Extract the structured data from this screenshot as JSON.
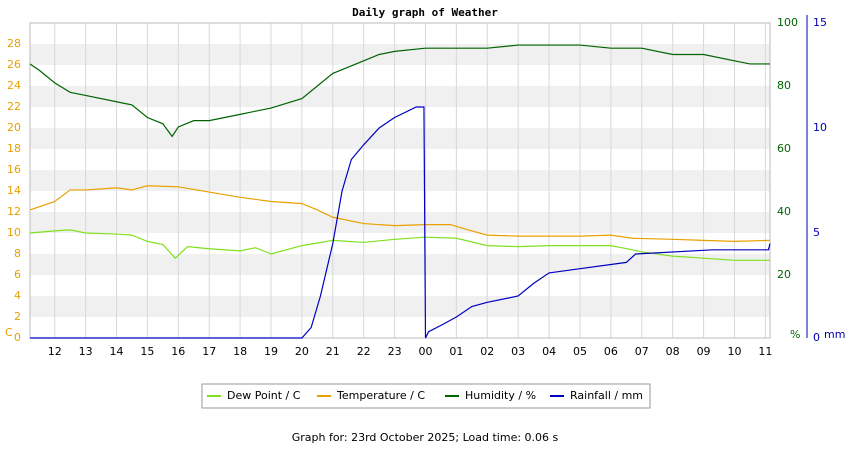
{
  "chart_data": {
    "type": "line",
    "title": "Daily graph of Weather",
    "footer": "Graph for: 23rd October 2025; Load time: 0.06 s",
    "xlim": [
      11.2,
      35.15
    ],
    "xticks": [
      12,
      13,
      14,
      15,
      16,
      17,
      18,
      19,
      20,
      21,
      22,
      23,
      {
        "value": 24,
        "label": "00"
      },
      {
        "value": 25,
        "label": "01"
      },
      {
        "value": 26,
        "label": "02"
      },
      {
        "value": 27,
        "label": "03"
      },
      {
        "value": 28,
        "label": "04"
      },
      {
        "value": 29,
        "label": "05"
      },
      {
        "value": 30,
        "label": "06"
      },
      {
        "value": 31,
        "label": "07"
      },
      {
        "value": 32,
        "label": "08"
      },
      {
        "value": 33,
        "label": "09"
      },
      {
        "value": 34,
        "label": "10"
      },
      {
        "value": 35,
        "label": "11"
      }
    ],
    "ylim": [
      0,
      30
    ],
    "yticks": [
      0,
      2,
      4,
      6,
      8,
      10,
      12,
      14,
      16,
      18,
      20,
      22,
      24,
      26,
      28
    ],
    "y_label": "C",
    "y_color": "#e8a000",
    "y2lim": [
      0,
      100
    ],
    "y2ticks": [
      20,
      40,
      60,
      80,
      100
    ],
    "y2_label": "%",
    "y2_color": "#006400",
    "y3lim": [
      0,
      15
    ],
    "y3ticks": [
      0,
      5,
      10,
      15
    ],
    "y3_label": "mm",
    "y3_color": "#0000aa",
    "grid": true,
    "series": [
      {
        "name": "Dew Point / C",
        "color": "#80e020",
        "axis": "y",
        "x": [
          11.2,
          12,
          12.5,
          13,
          14,
          14.5,
          15,
          15.5,
          15.9,
          16.3,
          17,
          18,
          18.5,
          19,
          20,
          21,
          22,
          23,
          24,
          25,
          26,
          27,
          28,
          29,
          30,
          30.7,
          31,
          32,
          33,
          34,
          35.15
        ],
        "values": [
          10.0,
          10.2,
          10.3,
          10.0,
          9.9,
          9.8,
          9.2,
          8.9,
          7.6,
          8.7,
          8.5,
          8.3,
          8.6,
          8.0,
          8.8,
          9.3,
          9.1,
          9.4,
          9.6,
          9.5,
          8.8,
          8.7,
          8.8,
          8.8,
          8.8,
          8.4,
          8.2,
          7.8,
          7.6,
          7.4,
          7.4
        ]
      },
      {
        "name": "Temperature / C",
        "color": "#e8a000",
        "axis": "y",
        "x": [
          11.2,
          12,
          12.5,
          13,
          14,
          14.5,
          15,
          16,
          17,
          18,
          19,
          20,
          20.5,
          21,
          22,
          23,
          24,
          24.8,
          25.5,
          26,
          27,
          28,
          29,
          30,
          30.7,
          32,
          33,
          34,
          35.15
        ],
        "values": [
          12.2,
          13.0,
          14.1,
          14.1,
          14.3,
          14.1,
          14.5,
          14.4,
          13.9,
          13.4,
          13.0,
          12.8,
          12.2,
          11.5,
          10.9,
          10.7,
          10.8,
          10.8,
          10.2,
          9.8,
          9.7,
          9.7,
          9.7,
          9.8,
          9.5,
          9.4,
          9.3,
          9.2,
          9.3
        ]
      },
      {
        "name": "Humidity / %",
        "color": "#006400",
        "axis": "y2",
        "x": [
          11.2,
          11.5,
          12,
          12.5,
          13,
          14,
          14.5,
          15,
          15.5,
          15.8,
          16,
          16.5,
          17,
          18,
          18.5,
          19,
          20,
          20.5,
          21,
          22,
          22.5,
          23,
          24,
          25,
          26,
          27,
          28,
          29,
          30,
          31,
          32,
          33,
          34,
          34.5,
          35.15
        ],
        "values": [
          87,
          85,
          81,
          78,
          77,
          75,
          74,
          70,
          68,
          64,
          67,
          69,
          69,
          71,
          72,
          73,
          76,
          80,
          84,
          88,
          90,
          91,
          92,
          92,
          92,
          93,
          93,
          93,
          92,
          92,
          90,
          90,
          88,
          87,
          87
        ]
      },
      {
        "name": "Rainfall / mm",
        "color": "#0000c0",
        "axis": "y3",
        "x": [
          11.2,
          20.0,
          20.3,
          20.6,
          21,
          21.3,
          21.6,
          22,
          22.5,
          23,
          23.7,
          23.95,
          24.0,
          24.1,
          24.5,
          25,
          25.5,
          26,
          27,
          27.5,
          28,
          28.5,
          29,
          30,
          30.5,
          30.8,
          33.3,
          35.1,
          35.15
        ],
        "values": [
          0,
          0,
          0.5,
          2,
          4.5,
          7,
          8.5,
          9.2,
          10,
          10.5,
          11,
          11,
          0,
          0.3,
          0.6,
          1.0,
          1.5,
          1.7,
          2.0,
          2.6,
          3.1,
          3.2,
          3.3,
          3.5,
          3.6,
          4.0,
          4.2,
          4.2,
          4.5
        ]
      }
    ]
  }
}
